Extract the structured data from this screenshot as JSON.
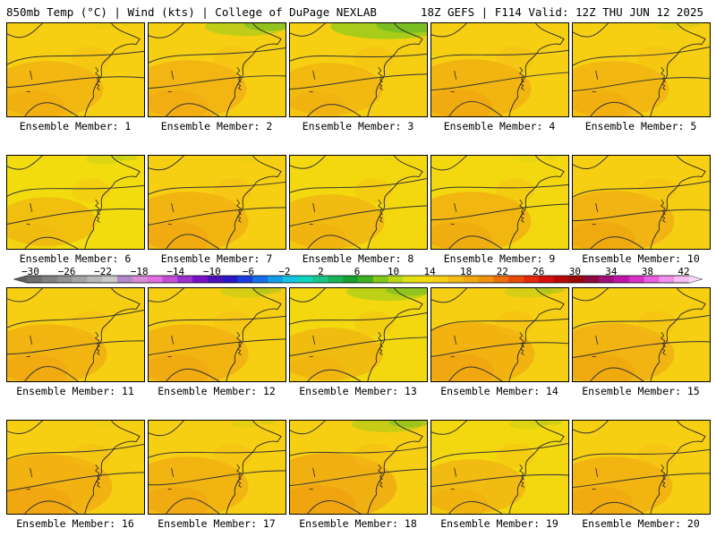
{
  "header": {
    "title_left": "850mb Temp (°C) | Wind (kts) | College of DuPage NEXLAB",
    "title_right": "18Z GEFS | F114 Valid: 12Z THU JUN 12 2025"
  },
  "panels": [
    {
      "label": "Ensemble Member: 1",
      "tint": "#f6cf12",
      "green": 0.1,
      "orange": 0.35
    },
    {
      "label": "Ensemble Member: 2",
      "tint": "#f6cf12",
      "green": 0.7,
      "orange": 0.4
    },
    {
      "label": "Ensemble Member: 3",
      "tint": "#f6cf12",
      "green": 1.0,
      "orange": 0.25
    },
    {
      "label": "Ensemble Member: 4",
      "tint": "#f6cf12",
      "green": 0.0,
      "orange": 0.45
    },
    {
      "label": "Ensemble Member: 5",
      "tint": "#f6cf12",
      "green": 0.2,
      "orange": 0.35
    },
    {
      "label": "Ensemble Member: 6",
      "tint": "#f3dc0e",
      "green": 0.3,
      "orange": 0.15
    },
    {
      "label": "Ensemble Member: 7",
      "tint": "#f6cf12",
      "green": 0.1,
      "orange": 0.45
    },
    {
      "label": "Ensemble Member: 8",
      "tint": "#f3d80f",
      "green": 0.05,
      "orange": 0.3
    },
    {
      "label": "Ensemble Member: 9",
      "tint": "#f3d80f",
      "green": 0.15,
      "orange": 0.45
    },
    {
      "label": "Ensemble Member: 10",
      "tint": "#f6cf12",
      "green": 0.0,
      "orange": 0.5
    },
    {
      "label": "Ensemble Member: 11",
      "tint": "#f6cf12",
      "green": 0.05,
      "orange": 0.45
    },
    {
      "label": "Ensemble Member: 12",
      "tint": "#f6cf12",
      "green": 0.4,
      "orange": 0.45
    },
    {
      "label": "Ensemble Member: 13",
      "tint": "#f3d80f",
      "green": 0.7,
      "orange": 0.25
    },
    {
      "label": "Ensemble Member: 14",
      "tint": "#f6cf12",
      "green": 0.4,
      "orange": 0.55
    },
    {
      "label": "Ensemble Member: 15",
      "tint": "#f6cf12",
      "green": 0.0,
      "orange": 0.5
    },
    {
      "label": "Ensemble Member: 16",
      "tint": "#f6cf12",
      "green": 0.1,
      "orange": 0.6
    },
    {
      "label": "Ensemble Member: 17",
      "tint": "#f6cf12",
      "green": 0.2,
      "orange": 0.45
    },
    {
      "label": "Ensemble Member: 18",
      "tint": "#f6cf12",
      "green": 0.6,
      "orange": 0.65
    },
    {
      "label": "Ensemble Member: 19",
      "tint": "#f3d80f",
      "green": 0.3,
      "orange": 0.3
    },
    {
      "label": "Ensemble Member: 20",
      "tint": "#f6cf12",
      "green": 0.0,
      "orange": 0.45
    }
  ],
  "colorbar": {
    "labels": [
      "−30",
      "−26",
      "−22",
      "−18",
      "−14",
      "−10",
      "−6",
      "−2",
      "2",
      "6",
      "10",
      "14",
      "18",
      "22",
      "26",
      "30",
      "34",
      "38",
      "42"
    ],
    "colors": [
      "#6f6f6f",
      "#808080",
      "#929292",
      "#a4a4a4",
      "#b7b7b7",
      "#c9c9c9",
      "#b28ac7",
      "#d98ad9",
      "#e06ee0",
      "#c44fd6",
      "#9b2fcf",
      "#7a10c4",
      "#4c10b8",
      "#2a18c7",
      "#1a3ee0",
      "#1570e8",
      "#129ee8",
      "#14c4e0",
      "#0fd6b8",
      "#1cc48a",
      "#18b45c",
      "#16a030",
      "#3fb020",
      "#80c81a",
      "#b8d816",
      "#e0e012",
      "#f3dc0e",
      "#f6cf12",
      "#f4bb14",
      "#f2a812",
      "#f0920e",
      "#ec6e0c",
      "#e84a0a",
      "#e4280c",
      "#d6100e",
      "#b80a0a",
      "#9a0608",
      "#8c0a3e",
      "#a0107a",
      "#c014a6",
      "#d830c8",
      "#e860e0",
      "#f090ec",
      "#f6bef2"
    ]
  }
}
